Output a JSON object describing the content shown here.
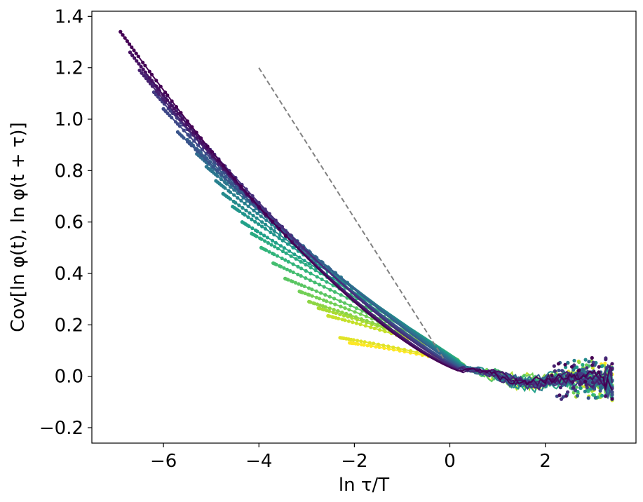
{
  "chart_data": {
    "type": "line",
    "title": "",
    "xlabel": "ln τ/T",
    "ylabel": "Cov[ln φ(t), ln φ(t + τ)]",
    "xlim": [
      -7.5,
      3.9
    ],
    "ylim": [
      -0.26,
      1.42
    ],
    "xticks": [
      -6,
      -4,
      -2,
      0,
      2
    ],
    "xtick_labels": [
      "−6",
      "−4",
      "−2",
      "0",
      "2"
    ],
    "yticks": [
      -0.2,
      0.0,
      0.2,
      0.4,
      0.6,
      0.8,
      1.0,
      1.2,
      1.4
    ],
    "ytick_labels": [
      "−0.2",
      "0.0",
      "0.2",
      "0.4",
      "0.6",
      "0.8",
      "1.0",
      "1.2",
      "1.4"
    ],
    "grid": false,
    "legend": "none",
    "colormap": "viridis",
    "colormap_stops": [
      "#440154",
      "#482878",
      "#3e4989",
      "#31688e",
      "#26828e",
      "#1f9e89",
      "#35b779",
      "#6ece58",
      "#b5de2b",
      "#fde725"
    ],
    "series_start_points": [
      {
        "x": -6.9,
        "y": 1.34
      },
      {
        "x": -6.7,
        "y": 1.26
      },
      {
        "x": -6.5,
        "y": 1.19
      },
      {
        "x": -6.35,
        "y": 1.17
      },
      {
        "x": -6.2,
        "y": 1.105
      },
      {
        "x": -6.0,
        "y": 1.04
      },
      {
        "x": -5.7,
        "y": 0.95
      },
      {
        "x": -5.5,
        "y": 0.92
      },
      {
        "x": -5.3,
        "y": 0.865
      },
      {
        "x": -5.1,
        "y": 0.815
      },
      {
        "x": -4.9,
        "y": 0.76
      },
      {
        "x": -4.75,
        "y": 0.71
      },
      {
        "x": -4.55,
        "y": 0.66
      },
      {
        "x": -4.35,
        "y": 0.6
      },
      {
        "x": -4.15,
        "y": 0.555
      },
      {
        "x": -3.95,
        "y": 0.5
      },
      {
        "x": -3.7,
        "y": 0.44
      },
      {
        "x": -3.45,
        "y": 0.38
      },
      {
        "x": -3.15,
        "y": 0.33
      },
      {
        "x": -2.95,
        "y": 0.29
      },
      {
        "x": -2.75,
        "y": 0.265
      },
      {
        "x": -2.55,
        "y": 0.235
      },
      {
        "x": -2.3,
        "y": 0.15
      },
      {
        "x": -2.1,
        "y": 0.13
      }
    ],
    "guide_line": {
      "x": [
        -4.0,
        -0.1
      ],
      "y": [
        1.2,
        0.06
      ],
      "color": "#808080",
      "style": "dashed"
    }
  }
}
